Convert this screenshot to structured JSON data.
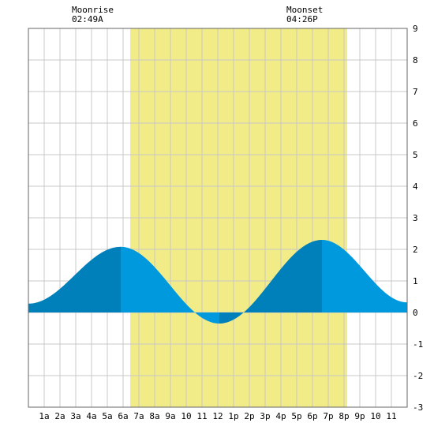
{
  "chart_data": {
    "type": "area",
    "title": "",
    "xlabel": "",
    "ylabel": "",
    "ylim": [
      -3,
      9
    ],
    "xlim": [
      0,
      24
    ],
    "grid": true,
    "x_ticks": [
      {
        "x": 1,
        "label": "1a"
      },
      {
        "x": 2,
        "label": "2a"
      },
      {
        "x": 3,
        "label": "3a"
      },
      {
        "x": 4,
        "label": "4a"
      },
      {
        "x": 5,
        "label": "5a"
      },
      {
        "x": 6,
        "label": "6a"
      },
      {
        "x": 7,
        "label": "7a"
      },
      {
        "x": 8,
        "label": "8a"
      },
      {
        "x": 9,
        "label": "9a"
      },
      {
        "x": 10,
        "label": "10"
      },
      {
        "x": 11,
        "label": "11"
      },
      {
        "x": 12,
        "label": "12"
      },
      {
        "x": 13,
        "label": "1p"
      },
      {
        "x": 14,
        "label": "2p"
      },
      {
        "x": 15,
        "label": "3p"
      },
      {
        "x": 16,
        "label": "4p"
      },
      {
        "x": 17,
        "label": "5p"
      },
      {
        "x": 18,
        "label": "6p"
      },
      {
        "x": 19,
        "label": "7p"
      },
      {
        "x": 20,
        "label": "8p"
      },
      {
        "x": 21,
        "label": "9p"
      },
      {
        "x": 22,
        "label": "10"
      },
      {
        "x": 23,
        "label": "11"
      }
    ],
    "y_ticks": [
      -3,
      -2,
      -1,
      0,
      1,
      2,
      3,
      4,
      5,
      6,
      7,
      8,
      9
    ],
    "daylight": {
      "start": 6.45,
      "end": 20.2
    },
    "tide_points": [
      {
        "x": 0.0,
        "y": 0.28
      },
      {
        "x": 5.85,
        "y": 2.08,
        "label": "high"
      },
      {
        "x": 12.1,
        "y": -0.35,
        "label": "low"
      },
      {
        "x": 18.6,
        "y": 2.3,
        "label": "high"
      },
      {
        "x": 24.0,
        "y": 0.32
      }
    ],
    "annotations": [
      {
        "x": 2.82,
        "title": "Moonrise",
        "time": "02:49A"
      },
      {
        "x": 16.43,
        "title": "Moonset",
        "time": "04:26P"
      }
    ],
    "colors": {
      "daylight": "#f2ec88",
      "tide_light": "#0099dd",
      "tide_dark": "#0080bb",
      "grid": "#c8c8c8",
      "frame": "#666666"
    }
  }
}
